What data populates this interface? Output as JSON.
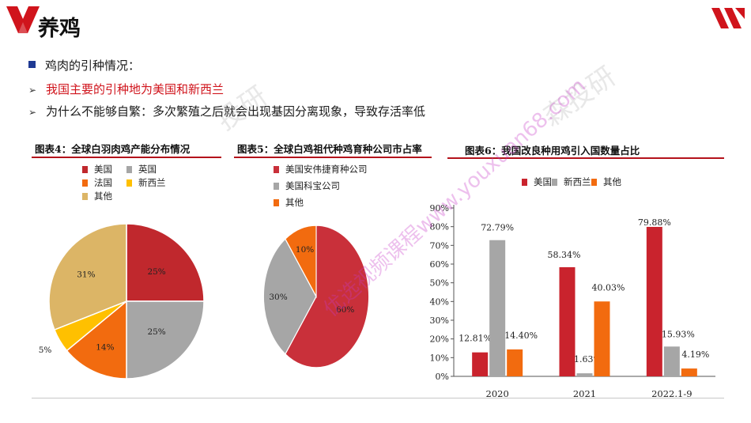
{
  "header": {
    "title": "养鸡",
    "brand_color": "#d0141c",
    "logo_left_icon": "v-logo-icon",
    "logo_right_icon": "double-slash-logo-icon"
  },
  "content": {
    "heading": "鸡肉的引种情况：",
    "points": [
      {
        "text": "我国主要的引种地为美国和新西兰",
        "color": "#d0141c"
      },
      {
        "text": "为什么不能够自繁：多次繁殖之后就会出现基因分离现象，导致存活率低",
        "color": "#1a1a1a"
      }
    ]
  },
  "watermarks": {
    "url": "www.youxuan68.com",
    "cn_text": "优选视频课程",
    "logo_text_1": "投研",
    "logo_text_2": "森投研"
  },
  "chart_data": [
    {
      "type": "pie",
      "title": "图表4：全球白羽肉鸡产能分布情况",
      "legend": [
        "美国",
        "英国",
        "法国",
        "新西兰",
        "其他"
      ],
      "slices": [
        {
          "label": "美国",
          "value": 25,
          "text": "25%",
          "color": "#c0282d"
        },
        {
          "label": "英国",
          "value": 25,
          "text": "25%",
          "color": "#a6a6a6"
        },
        {
          "label": "法国",
          "value": 14,
          "text": "14%",
          "color": "#f26b0f"
        },
        {
          "label": "新西兰",
          "value": 5,
          "text": "5%",
          "color": "#ffc000"
        },
        {
          "label": "其他",
          "value": 31,
          "text": "31%",
          "color": "#dcb566"
        }
      ],
      "legend_position": "top-left"
    },
    {
      "type": "pie",
      "title": "图表5：全球白鸡祖代种鸡育种公司市占率",
      "legend": [
        "美国安伟捷育种公司",
        "美国科宝公司",
        "其他"
      ],
      "slices": [
        {
          "label": "美国安伟捷育种公司",
          "value": 60,
          "text": "60%",
          "color": "#c9303a"
        },
        {
          "label": "美国科宝公司",
          "value": 30,
          "text": "30%",
          "color": "#a6a6a6"
        },
        {
          "label": "其他",
          "value": 10,
          "text": "10%",
          "color": "#f26b0f"
        }
      ],
      "legend_position": "top-left"
    },
    {
      "type": "bar",
      "title": "图表6：我国改良种用鸡引入国数量占比",
      "categories": [
        "2020",
        "2021",
        "2022.1-9"
      ],
      "series": [
        {
          "name": "美国",
          "color": "#c9232d",
          "values": [
            12.81,
            58.34,
            79.88
          ],
          "labels": [
            "12.81%",
            "58.34%",
            "79.88%"
          ]
        },
        {
          "name": "新西兰",
          "color": "#a6a6a6",
          "values": [
            72.79,
            1.63,
            15.93
          ],
          "labels": [
            "72.79%",
            "1.63%",
            "15.93%"
          ]
        },
        {
          "name": "其他",
          "color": "#f26b0f",
          "values": [
            14.4,
            40.03,
            4.19
          ],
          "labels": [
            "14.40%",
            "40.03%",
            "4.19%"
          ]
        }
      ],
      "y_ticks": [
        "0%",
        "10%",
        "20%",
        "30%",
        "40%",
        "50%",
        "60%",
        "70%",
        "80%",
        "90%"
      ],
      "ylim": [
        0,
        90
      ],
      "grid": false,
      "legend_position": "top-left"
    }
  ]
}
